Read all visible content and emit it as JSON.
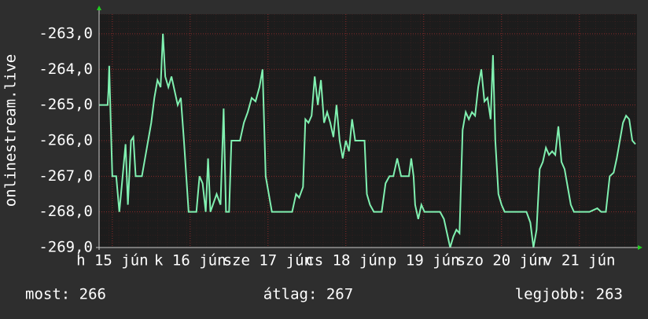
{
  "chart_data": {
    "type": "line",
    "ylabel": "onlinestream.live",
    "xlim": [
      0,
      6.91
    ],
    "ylim": [
      -269,
      -262.45
    ],
    "yticks": [
      {
        "value": -263,
        "label": "-263,0"
      },
      {
        "value": -264,
        "label": "-264,0"
      },
      {
        "value": -265,
        "label": "-265,0"
      },
      {
        "value": -266,
        "label": "-266,0"
      },
      {
        "value": -267,
        "label": "-267,0"
      },
      {
        "value": -268,
        "label": "-268,0"
      },
      {
        "value": -269,
        "label": "-269,0"
      }
    ],
    "xticks": [
      {
        "value": 0.17,
        "label": "h 15 jún"
      },
      {
        "value": 1.17,
        "label": "k 16 jún"
      },
      {
        "value": 2.17,
        "label": "sze 17 jún"
      },
      {
        "value": 3.17,
        "label": "cs 18 jún"
      },
      {
        "value": 4.17,
        "label": "p 19 jún"
      },
      {
        "value": 5.17,
        "label": "szo 20 jún"
      },
      {
        "value": 6.17,
        "label": "v 21 jún"
      }
    ],
    "grid": true,
    "series": [
      {
        "color": "#80f0b0",
        "x": [
          0,
          0.11,
          0.12,
          0.13,
          0.15,
          0.17,
          0.22,
          0.26,
          0.29,
          0.34,
          0.37,
          0.41,
          0.44,
          0.47,
          0.55,
          0.59,
          0.63,
          0.67,
          0.71,
          0.75,
          0.79,
          0.82,
          0.85,
          0.89,
          0.93,
          0.97,
          1.01,
          1.05,
          1.09,
          1.12,
          1.15,
          1.2,
          1.25,
          1.29,
          1.33,
          1.37,
          1.4,
          1.43,
          1.51,
          1.56,
          1.6,
          1.63,
          1.67,
          1.7,
          1.76,
          1.81,
          1.86,
          1.91,
          1.96,
          2.01,
          2.06,
          2.1,
          2.14,
          2.18,
          2.22,
          2.31,
          2.41,
          2.48,
          2.53,
          2.57,
          2.62,
          2.65,
          2.69,
          2.73,
          2.77,
          2.81,
          2.85,
          2.89,
          2.93,
          2.97,
          3.01,
          3.05,
          3.09,
          3.13,
          3.17,
          3.21,
          3.25,
          3.29,
          3.33,
          3.37,
          3.41,
          3.44,
          3.48,
          3.53,
          3.58,
          3.63,
          3.68,
          3.73,
          3.78,
          3.83,
          3.88,
          3.93,
          3.98,
          4.01,
          4.04,
          4.06,
          4.1,
          4.14,
          4.18,
          4.23,
          4.28,
          4.33,
          4.38,
          4.43,
          4.47,
          4.51,
          4.55,
          4.59,
          4.63,
          4.67,
          4.71,
          4.75,
          4.79,
          4.83,
          4.87,
          4.91,
          4.95,
          4.99,
          5.03,
          5.06,
          5.09,
          5.13,
          5.17,
          5.21,
          5.29,
          5.39,
          5.49,
          5.54,
          5.58,
          5.62,
          5.66,
          5.7,
          5.74,
          5.78,
          5.82,
          5.86,
          5.9,
          5.94,
          5.98,
          6.02,
          6.06,
          6.1,
          6.2,
          6.3,
          6.4,
          6.45,
          6.51,
          6.56,
          6.61,
          6.65,
          6.69,
          6.73,
          6.77,
          6.81,
          6.85,
          6.89
        ],
        "values": [
          -265.0,
          -265.0,
          -264.6,
          -263.9,
          -265.5,
          -267.0,
          -267.0,
          -268.0,
          -267.3,
          -266.1,
          -267.8,
          -266.0,
          -265.9,
          -267.0,
          -267.0,
          -266.5,
          -266.0,
          -265.5,
          -264.8,
          -264.3,
          -264.5,
          -263.0,
          -264.2,
          -264.5,
          -264.2,
          -264.6,
          -265.0,
          -264.8,
          -266.0,
          -267.0,
          -268.0,
          -268.0,
          -268.0,
          -267.0,
          -267.2,
          -268.0,
          -266.5,
          -268.0,
          -267.5,
          -267.8,
          -265.1,
          -268.0,
          -268.0,
          -266.0,
          -266.0,
          -266.0,
          -265.5,
          -265.2,
          -264.8,
          -264.9,
          -264.5,
          -264.0,
          -267.0,
          -267.5,
          -268.0,
          -268.0,
          -268.0,
          -268.0,
          -267.5,
          -267.6,
          -267.3,
          -265.4,
          -265.5,
          -265.3,
          -264.2,
          -265.0,
          -264.3,
          -265.5,
          -265.2,
          -265.5,
          -265.9,
          -265.0,
          -266.0,
          -266.5,
          -266.0,
          -266.3,
          -265.4,
          -266.0,
          -266.0,
          -266.0,
          -266.0,
          -267.5,
          -267.8,
          -268.0,
          -268.0,
          -268.0,
          -267.2,
          -267.0,
          -267.0,
          -266.5,
          -267.0,
          -267.0,
          -267.0,
          -266.5,
          -267.0,
          -267.8,
          -268.2,
          -267.8,
          -268.0,
          -268.0,
          -268.0,
          -268.0,
          -268.0,
          -268.2,
          -268.6,
          -269.0,
          -268.7,
          -268.5,
          -268.6,
          -265.7,
          -265.2,
          -265.4,
          -265.2,
          -265.3,
          -264.5,
          -264.0,
          -264.9,
          -264.8,
          -265.4,
          -263.6,
          -266.0,
          -267.5,
          -267.8,
          -268.0,
          -268.0,
          -268.0,
          -268.0,
          -268.3,
          -269.0,
          -268.5,
          -266.8,
          -266.6,
          -266.2,
          -266.4,
          -266.3,
          -266.4,
          -265.6,
          -266.6,
          -266.8,
          -267.3,
          -267.8,
          -268.0,
          -268.0,
          -268.0,
          -267.9,
          -268.0,
          -268.0,
          -267.0,
          -266.9,
          -266.5,
          -266.0,
          -265.5,
          -265.3,
          -265.4,
          -266.0,
          -266.1
        ]
      }
    ]
  },
  "footer": {
    "current": "most: 266",
    "average": "átlag: 267",
    "best": "legjobb: 263"
  }
}
